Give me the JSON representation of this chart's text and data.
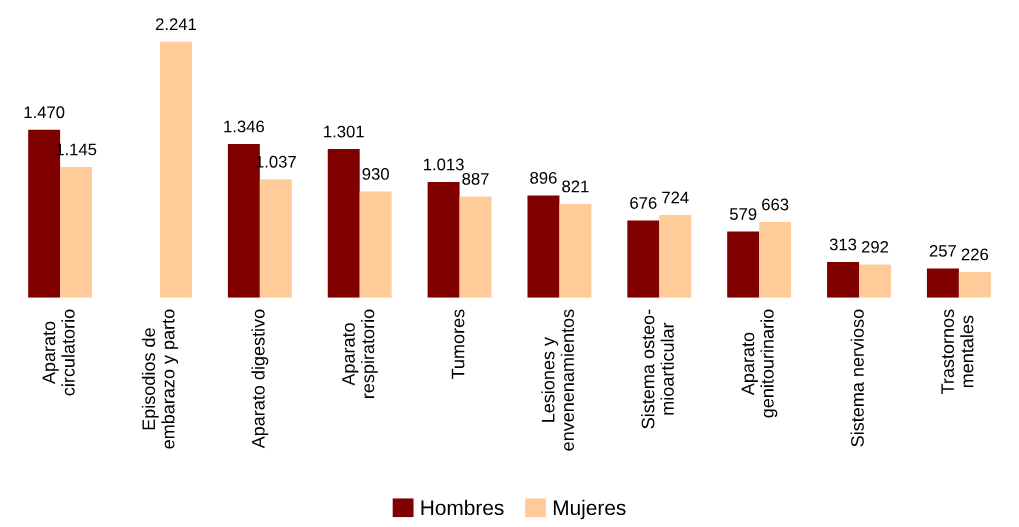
{
  "chart_data": {
    "type": "bar",
    "categories": [
      "Aparato\ncirculatorio",
      "Episodios de\nembarazo y parto",
      "Aparato digestivo",
      "Aparato\nrespiratorio",
      "Tumores",
      "Lesiones y\nenvenenamientos",
      "Sistema osteo-\nmioarticular",
      "Aparato\ngenitourinario",
      "Sistema nervioso",
      "Trastornos\nmentales"
    ],
    "series": [
      {
        "name": "Hombres",
        "color": "#800000",
        "values": [
          1470,
          null,
          1346,
          1301,
          1013,
          896,
          676,
          579,
          313,
          257
        ],
        "value_labels": [
          "1.470",
          null,
          "1.346",
          "1.301",
          "1.013",
          "896",
          "676",
          "579",
          "313",
          "257"
        ]
      },
      {
        "name": "Mujeres",
        "color": "#ffcc99",
        "values": [
          1145,
          2241,
          1037,
          930,
          887,
          821,
          724,
          663,
          292,
          226
        ],
        "value_labels": [
          "1.145",
          "2.241",
          "1.037",
          "930",
          "887",
          "821",
          "724",
          "663",
          "292",
          "226"
        ]
      }
    ],
    "legend": "bottom",
    "grid": false
  }
}
